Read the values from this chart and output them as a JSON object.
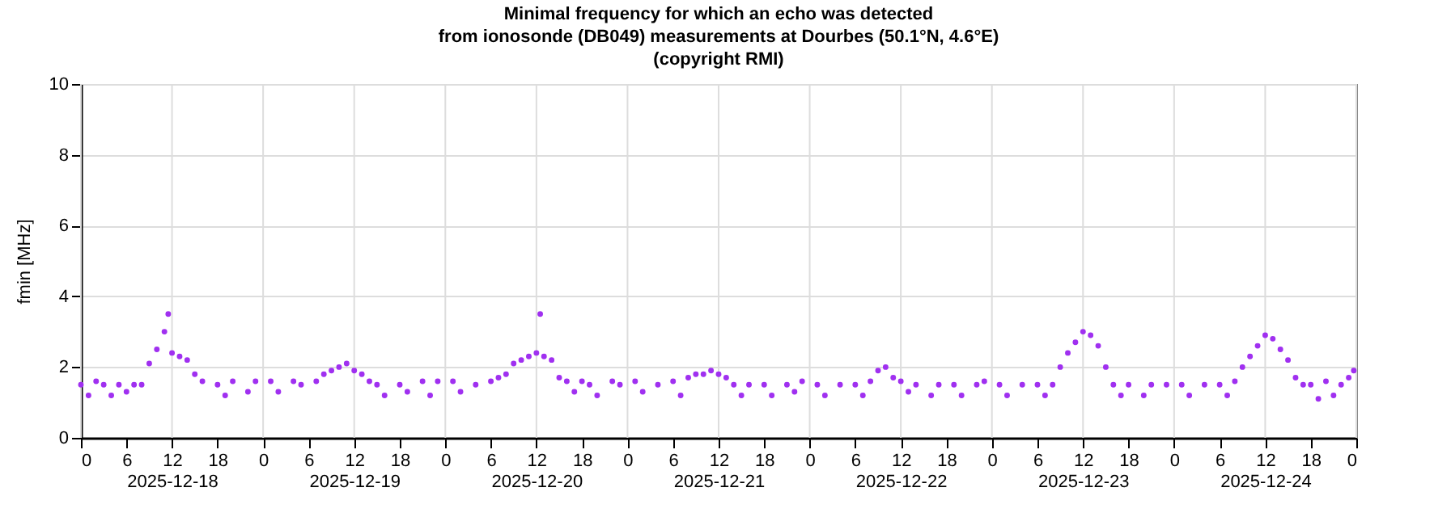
{
  "chart_data": {
    "type": "scatter",
    "title": "Minimal frequency for which an echo was detected\nfrom ionosonde (DB049) measurements at Dourbes (50.1°N, 4.6°E)\n(copyright RMI)",
    "ylabel": "fmin [MHz]",
    "x": [
      "2025-12-18T00:00",
      "2025-12-18T01:00",
      "2025-12-18T02:00",
      "2025-12-18T03:00",
      "2025-12-18T04:00",
      "2025-12-18T05:00",
      "2025-12-18T06:00",
      "2025-12-18T07:00",
      "2025-12-18T08:00",
      "2025-12-18T09:00",
      "2025-12-18T10:00",
      "2025-12-18T11:00",
      "2025-12-18T11:30",
      "2025-12-18T12:00",
      "2025-12-18T13:00",
      "2025-12-18T14:00",
      "2025-12-18T15:00",
      "2025-12-18T16:00",
      "2025-12-18T18:00",
      "2025-12-18T19:00",
      "2025-12-18T20:00",
      "2025-12-18T22:00",
      "2025-12-18T23:00",
      "2025-12-19T01:00",
      "2025-12-19T02:00",
      "2025-12-19T04:00",
      "2025-12-19T05:00",
      "2025-12-19T07:00",
      "2025-12-19T08:00",
      "2025-12-19T09:00",
      "2025-12-19T10:00",
      "2025-12-19T11:00",
      "2025-12-19T12:00",
      "2025-12-19T13:00",
      "2025-12-19T14:00",
      "2025-12-19T15:00",
      "2025-12-19T16:00",
      "2025-12-19T18:00",
      "2025-12-19T19:00",
      "2025-12-19T21:00",
      "2025-12-19T22:00",
      "2025-12-19T23:00",
      "2025-12-20T01:00",
      "2025-12-20T02:00",
      "2025-12-20T04:00",
      "2025-12-20T06:00",
      "2025-12-20T07:00",
      "2025-12-20T08:00",
      "2025-12-20T09:00",
      "2025-12-20T10:00",
      "2025-12-20T11:00",
      "2025-12-20T12:00",
      "2025-12-20T12:30",
      "2025-12-20T13:00",
      "2025-12-20T14:00",
      "2025-12-20T15:00",
      "2025-12-20T16:00",
      "2025-12-20T17:00",
      "2025-12-20T18:00",
      "2025-12-20T19:00",
      "2025-12-20T20:00",
      "2025-12-20T22:00",
      "2025-12-20T23:00",
      "2025-12-21T01:00",
      "2025-12-21T02:00",
      "2025-12-21T04:00",
      "2025-12-21T06:00",
      "2025-12-21T07:00",
      "2025-12-21T08:00",
      "2025-12-21T09:00",
      "2025-12-21T10:00",
      "2025-12-21T11:00",
      "2025-12-21T12:00",
      "2025-12-21T13:00",
      "2025-12-21T14:00",
      "2025-12-21T15:00",
      "2025-12-21T16:00",
      "2025-12-21T18:00",
      "2025-12-21T19:00",
      "2025-12-21T21:00",
      "2025-12-21T22:00",
      "2025-12-21T23:00",
      "2025-12-22T01:00",
      "2025-12-22T02:00",
      "2025-12-22T04:00",
      "2025-12-22T06:00",
      "2025-12-22T07:00",
      "2025-12-22T08:00",
      "2025-12-22T09:00",
      "2025-12-22T10:00",
      "2025-12-22T11:00",
      "2025-12-22T12:00",
      "2025-12-22T13:00",
      "2025-12-22T14:00",
      "2025-12-22T16:00",
      "2025-12-22T17:00",
      "2025-12-22T19:00",
      "2025-12-22T20:00",
      "2025-12-22T22:00",
      "2025-12-22T23:00",
      "2025-12-23T01:00",
      "2025-12-23T02:00",
      "2025-12-23T04:00",
      "2025-12-23T06:00",
      "2025-12-23T07:00",
      "2025-12-23T08:00",
      "2025-12-23T09:00",
      "2025-12-23T10:00",
      "2025-12-23T11:00",
      "2025-12-23T12:00",
      "2025-12-23T13:00",
      "2025-12-23T14:00",
      "2025-12-23T15:00",
      "2025-12-23T16:00",
      "2025-12-23T17:00",
      "2025-12-23T18:00",
      "2025-12-23T20:00",
      "2025-12-23T21:00",
      "2025-12-23T23:00",
      "2025-12-24T01:00",
      "2025-12-24T02:00",
      "2025-12-24T04:00",
      "2025-12-24T06:00",
      "2025-12-24T07:00",
      "2025-12-24T08:00",
      "2025-12-24T09:00",
      "2025-12-24T10:00",
      "2025-12-24T11:00",
      "2025-12-24T12:00",
      "2025-12-24T13:00",
      "2025-12-24T14:00",
      "2025-12-24T15:00",
      "2025-12-24T16:00",
      "2025-12-24T17:00",
      "2025-12-24T18:00",
      "2025-12-24T19:00",
      "2025-12-24T20:00",
      "2025-12-24T21:00",
      "2025-12-24T22:00",
      "2025-12-24T23:00",
      "2025-12-24T23:40"
    ],
    "series": [
      {
        "color": "#a030f0",
        "values": [
          1.5,
          1.2,
          1.6,
          1.5,
          1.2,
          1.5,
          1.3,
          1.5,
          1.5,
          2.1,
          2.5,
          3.0,
          3.5,
          2.4,
          2.3,
          2.2,
          1.8,
          1.6,
          1.5,
          1.2,
          1.6,
          1.3,
          1.6,
          1.6,
          1.3,
          1.6,
          1.5,
          1.6,
          1.8,
          1.9,
          2.0,
          2.1,
          1.9,
          1.8,
          1.6,
          1.5,
          1.2,
          1.5,
          1.3,
          1.6,
          1.2,
          1.6,
          1.6,
          1.3,
          1.5,
          1.6,
          1.7,
          1.8,
          2.1,
          2.2,
          2.3,
          2.4,
          3.5,
          2.3,
          2.2,
          1.7,
          1.6,
          1.3,
          1.6,
          1.5,
          1.2,
          1.6,
          1.5,
          1.6,
          1.3,
          1.5,
          1.6,
          1.2,
          1.7,
          1.8,
          1.8,
          1.9,
          1.8,
          1.7,
          1.5,
          1.2,
          1.5,
          1.5,
          1.2,
          1.5,
          1.3,
          1.6,
          1.5,
          1.2,
          1.5,
          1.5,
          1.2,
          1.6,
          1.9,
          2.0,
          1.7,
          1.6,
          1.3,
          1.5,
          1.2,
          1.5,
          1.5,
          1.2,
          1.5,
          1.6,
          1.5,
          1.2,
          1.5,
          1.5,
          1.2,
          1.5,
          2.0,
          2.4,
          2.7,
          3.0,
          2.9,
          2.6,
          2.0,
          1.5,
          1.2,
          1.5,
          1.2,
          1.5,
          1.5,
          1.5,
          1.2,
          1.5,
          1.5,
          1.2,
          1.6,
          2.0,
          2.3,
          2.6,
          2.9,
          2.8,
          2.5,
          2.2,
          1.7,
          1.5,
          1.5,
          1.1,
          1.6,
          1.2,
          1.5,
          1.7,
          1.9
        ]
      }
    ],
    "xlim": [
      "2025-12-18T00:00",
      "2025-12-25T00:00"
    ],
    "ylim": [
      0,
      10
    ],
    "yticks": [
      0,
      2,
      4,
      6,
      8,
      10
    ],
    "xticks": [
      {
        "value": "2025-12-18T00:00",
        "label": "0"
      },
      {
        "value": "2025-12-18T06:00",
        "label": "6"
      },
      {
        "value": "2025-12-18T12:00",
        "label": "12\n2025-12-18"
      },
      {
        "value": "2025-12-18T18:00",
        "label": "18"
      },
      {
        "value": "2025-12-19T00:00",
        "label": "0"
      },
      {
        "value": "2025-12-19T06:00",
        "label": "6"
      },
      {
        "value": "2025-12-19T12:00",
        "label": "12\n2025-12-19"
      },
      {
        "value": "2025-12-19T18:00",
        "label": "18"
      },
      {
        "value": "2025-12-20T00:00",
        "label": "0"
      },
      {
        "value": "2025-12-20T06:00",
        "label": "6"
      },
      {
        "value": "2025-12-20T12:00",
        "label": "12\n2025-12-20"
      },
      {
        "value": "2025-12-20T18:00",
        "label": "18"
      },
      {
        "value": "2025-12-21T00:00",
        "label": "0"
      },
      {
        "value": "2025-12-21T06:00",
        "label": "6"
      },
      {
        "value": "2025-12-21T12:00",
        "label": "12\n2025-12-21"
      },
      {
        "value": "2025-12-21T18:00",
        "label": "18"
      },
      {
        "value": "2025-12-22T00:00",
        "label": "0"
      },
      {
        "value": "2025-12-22T06:00",
        "label": "6"
      },
      {
        "value": "2025-12-22T12:00",
        "label": "12\n2025-12-22"
      },
      {
        "value": "2025-12-22T18:00",
        "label": "18"
      },
      {
        "value": "2025-12-23T00:00",
        "label": "0"
      },
      {
        "value": "2025-12-23T06:00",
        "label": "6"
      },
      {
        "value": "2025-12-23T12:00",
        "label": "12\n2025-12-23"
      },
      {
        "value": "2025-12-23T18:00",
        "label": "18"
      },
      {
        "value": "2025-12-24T00:00",
        "label": "0"
      },
      {
        "value": "2025-12-24T06:00",
        "label": "6"
      },
      {
        "value": "2025-12-24T12:00",
        "label": "12\n2025-12-24"
      },
      {
        "value": "2025-12-24T18:00",
        "label": "18"
      },
      {
        "value": "2025-12-25T00:00",
        "label": "0"
      }
    ],
    "grid": true,
    "marker": "circle"
  }
}
